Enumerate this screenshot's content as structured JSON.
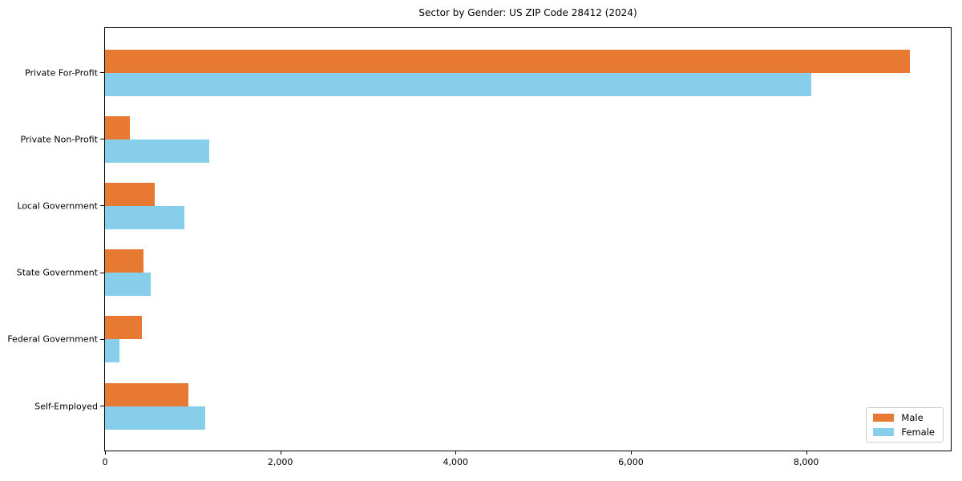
{
  "chart_data": {
    "type": "bar",
    "orientation": "horizontal",
    "title": "Sector by Gender: US ZIP Code 28412 (2024)",
    "categories": [
      "Private For-Profit",
      "Private Non-Profit",
      "Local Government",
      "State Government",
      "Federal Government",
      "Self-Employed"
    ],
    "series": [
      {
        "name": "Male",
        "color": "#e87933",
        "values": [
          9185,
          280,
          565,
          440,
          420,
          950
        ]
      },
      {
        "name": "Female",
        "color": "#87ceeb",
        "values": [
          8060,
          1185,
          905,
          525,
          165,
          1145
        ]
      }
    ],
    "xlim": [
      0,
      9650
    ],
    "xticks": [
      0,
      2000,
      4000,
      6000,
      8000
    ],
    "xtick_labels": [
      "0",
      "2,000",
      "4,000",
      "6,000",
      "8,000"
    ],
    "xlabel": "",
    "ylabel": "",
    "grid": false,
    "legend": {
      "position": "lower right"
    }
  }
}
